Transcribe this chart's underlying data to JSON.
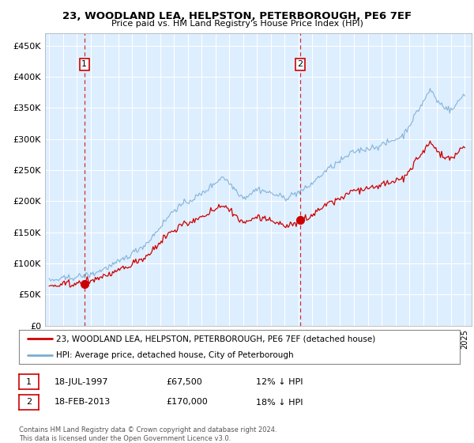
{
  "title": "23, WOODLAND LEA, HELPSTON, PETERBOROUGH, PE6 7EF",
  "subtitle": "Price paid vs. HM Land Registry's House Price Index (HPI)",
  "ylim": [
    0,
    470000
  ],
  "yticks": [
    0,
    50000,
    100000,
    150000,
    200000,
    250000,
    300000,
    350000,
    400000,
    450000
  ],
  "ytick_labels": [
    "£0",
    "£50K",
    "£100K",
    "£150K",
    "£200K",
    "£250K",
    "£300K",
    "£350K",
    "£400K",
    "£450K"
  ],
  "sale1_year": 1997.542,
  "sale1_price": 67500,
  "sale1_date": "18-JUL-1997",
  "sale1_pct": "12% ↓ HPI",
  "sale2_year": 2013.125,
  "sale2_price": 170000,
  "sale2_date": "18-FEB-2013",
  "sale2_pct": "18% ↓ HPI",
  "property_label": "23, WOODLAND LEA, HELPSTON, PETERBOROUGH, PE6 7EF (detached house)",
  "hpi_label": "HPI: Average price, detached house, City of Peterborough",
  "footer": "Contains HM Land Registry data © Crown copyright and database right 2024.\nThis data is licensed under the Open Government Licence v3.0.",
  "property_color": "#cc0000",
  "hpi_color": "#7aadd4",
  "vline_color": "#cc0000",
  "chart_bg": "#ddeeff",
  "background_color": "#ffffff",
  "grid_color": "#ffffff",
  "label_box_color": "#cc0000",
  "num_boxes": [
    {
      "label": "1",
      "year": 1997.542
    },
    {
      "label": "2",
      "year": 2013.125
    }
  ]
}
